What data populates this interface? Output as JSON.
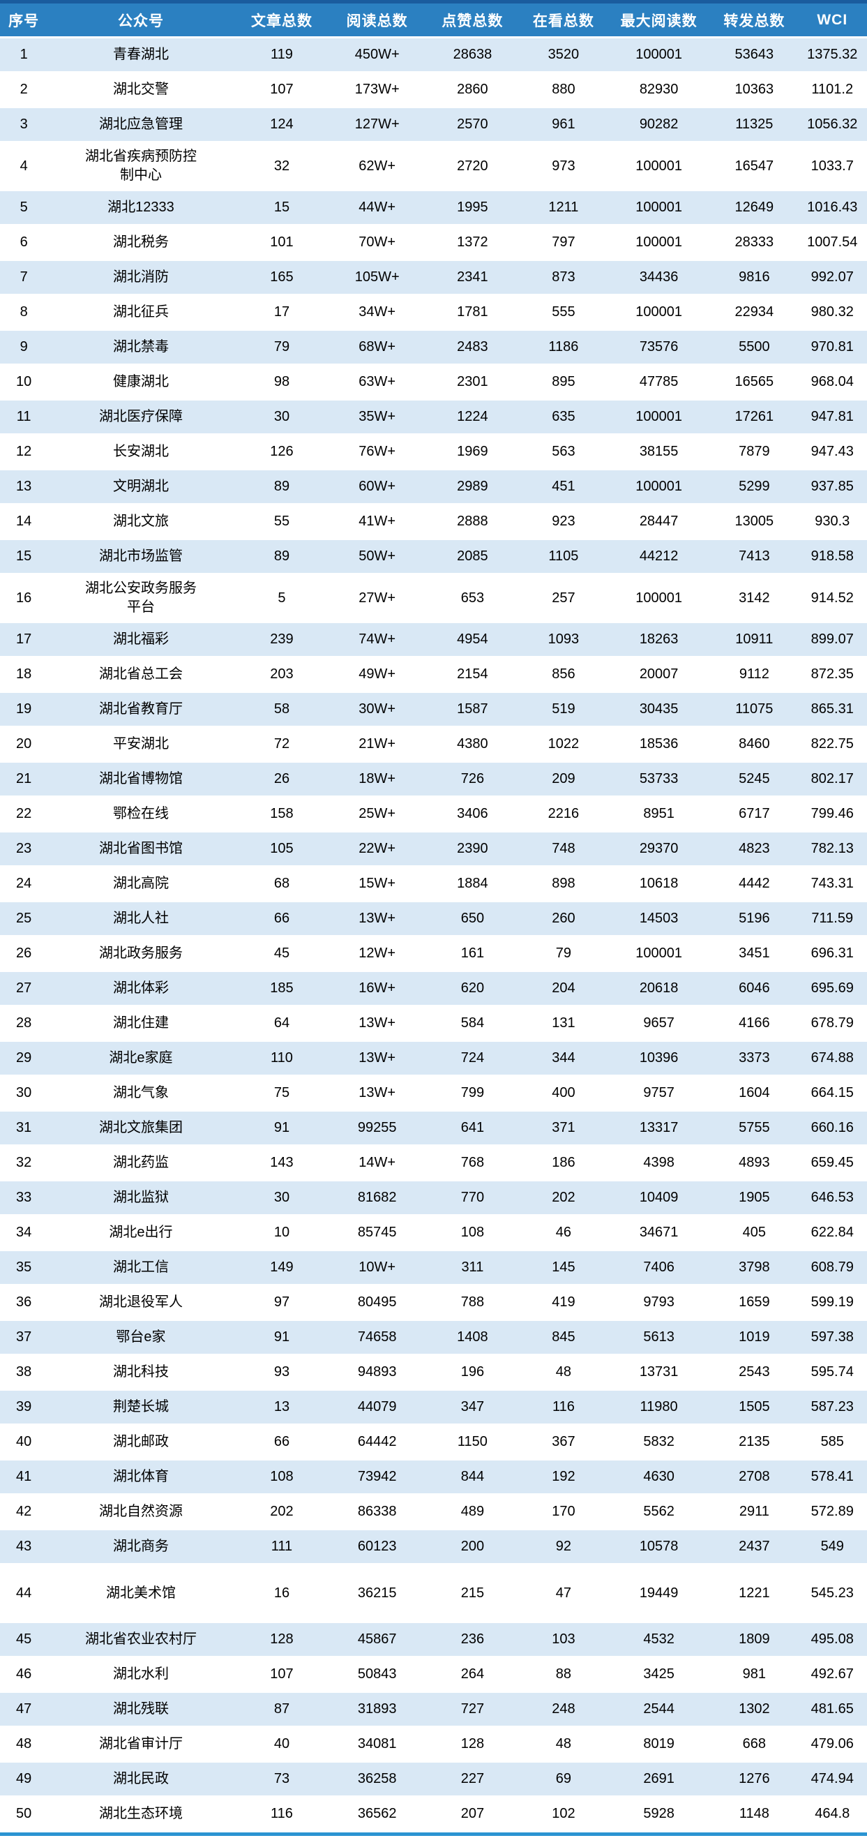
{
  "colors": {
    "top_bar": "#1A5C9E",
    "header_bg": "#2B80C1",
    "header_text": "#FFFFFF",
    "row_alt": "#D9E8F5",
    "row_plain": "#FFFFFF",
    "bottom_bar": "#2B94D2",
    "body_text": "#000000"
  },
  "chart_data": {
    "type": "table",
    "columns": [
      "序号",
      "公众号",
      "文章总数",
      "阅读总数",
      "点赞总数",
      "在看总数",
      "最大阅读数",
      "转发总数",
      "WCI"
    ],
    "rows": [
      [
        "1",
        "青春湖北",
        "119",
        "450W+",
        "28638",
        "3520",
        "100001",
        "53643",
        "1375.32"
      ],
      [
        "2",
        "湖北交警",
        "107",
        "173W+",
        "2860",
        "880",
        "82930",
        "10363",
        "1101.2"
      ],
      [
        "3",
        "湖北应急管理",
        "124",
        "127W+",
        "2570",
        "961",
        "90282",
        "11325",
        "1056.32"
      ],
      [
        "4",
        "湖北省疾病预防控制中心",
        "32",
        "62W+",
        "2720",
        "973",
        "100001",
        "16547",
        "1033.7"
      ],
      [
        "5",
        "湖北12333",
        "15",
        "44W+",
        "1995",
        "1211",
        "100001",
        "12649",
        "1016.43"
      ],
      [
        "6",
        "湖北税务",
        "101",
        "70W+",
        "1372",
        "797",
        "100001",
        "28333",
        "1007.54"
      ],
      [
        "7",
        "湖北消防",
        "165",
        "105W+",
        "2341",
        "873",
        "34436",
        "9816",
        "992.07"
      ],
      [
        "8",
        "湖北征兵",
        "17",
        "34W+",
        "1781",
        "555",
        "100001",
        "22934",
        "980.32"
      ],
      [
        "9",
        "湖北禁毒",
        "79",
        "68W+",
        "2483",
        "1186",
        "73576",
        "5500",
        "970.81"
      ],
      [
        "10",
        "健康湖北",
        "98",
        "63W+",
        "2301",
        "895",
        "47785",
        "16565",
        "968.04"
      ],
      [
        "11",
        "湖北医疗保障",
        "30",
        "35W+",
        "1224",
        "635",
        "100001",
        "17261",
        "947.81"
      ],
      [
        "12",
        "长安湖北",
        "126",
        "76W+",
        "1969",
        "563",
        "38155",
        "7879",
        "947.43"
      ],
      [
        "13",
        "文明湖北",
        "89",
        "60W+",
        "2989",
        "451",
        "100001",
        "5299",
        "937.85"
      ],
      [
        "14",
        "湖北文旅",
        "55",
        "41W+",
        "2888",
        "923",
        "28447",
        "13005",
        "930.3"
      ],
      [
        "15",
        "湖北市场监管",
        "89",
        "50W+",
        "2085",
        "1105",
        "44212",
        "7413",
        "918.58"
      ],
      [
        "16",
        "湖北公安政务服务平台",
        "5",
        "27W+",
        "653",
        "257",
        "100001",
        "3142",
        "914.52"
      ],
      [
        "17",
        "湖北福彩",
        "239",
        "74W+",
        "4954",
        "1093",
        "18263",
        "10911",
        "899.07"
      ],
      [
        "18",
        "湖北省总工会",
        "203",
        "49W+",
        "2154",
        "856",
        "20007",
        "9112",
        "872.35"
      ],
      [
        "19",
        "湖北省教育厅",
        "58",
        "30W+",
        "1587",
        "519",
        "30435",
        "11075",
        "865.31"
      ],
      [
        "20",
        "平安湖北",
        "72",
        "21W+",
        "4380",
        "1022",
        "18536",
        "8460",
        "822.75"
      ],
      [
        "21",
        "湖北省博物馆",
        "26",
        "18W+",
        "726",
        "209",
        "53733",
        "5245",
        "802.17"
      ],
      [
        "22",
        "鄂检在线",
        "158",
        "25W+",
        "3406",
        "2216",
        "8951",
        "6717",
        "799.46"
      ],
      [
        "23",
        "湖北省图书馆",
        "105",
        "22W+",
        "2390",
        "748",
        "29370",
        "4823",
        "782.13"
      ],
      [
        "24",
        "湖北高院",
        "68",
        "15W+",
        "1884",
        "898",
        "10618",
        "4442",
        "743.31"
      ],
      [
        "25",
        "湖北人社",
        "66",
        "13W+",
        "650",
        "260",
        "14503",
        "5196",
        "711.59"
      ],
      [
        "26",
        "湖北政务服务",
        "45",
        "12W+",
        "161",
        "79",
        "100001",
        "3451",
        "696.31"
      ],
      [
        "27",
        "湖北体彩",
        "185",
        "16W+",
        "620",
        "204",
        "20618",
        "6046",
        "695.69"
      ],
      [
        "28",
        "湖北住建",
        "64",
        "13W+",
        "584",
        "131",
        "9657",
        "4166",
        "678.79"
      ],
      [
        "29",
        "湖北e家庭",
        "110",
        "13W+",
        "724",
        "344",
        "10396",
        "3373",
        "674.88"
      ],
      [
        "30",
        "湖北气象",
        "75",
        "13W+",
        "799",
        "400",
        "9757",
        "1604",
        "664.15"
      ],
      [
        "31",
        "湖北文旅集团",
        "91",
        "99255",
        "641",
        "371",
        "13317",
        "5755",
        "660.16"
      ],
      [
        "32",
        "湖北药监",
        "143",
        "14W+",
        "768",
        "186",
        "4398",
        "4893",
        "659.45"
      ],
      [
        "33",
        "湖北监狱",
        "30",
        "81682",
        "770",
        "202",
        "10409",
        "1905",
        "646.53"
      ],
      [
        "34",
        "湖北e出行",
        "10",
        "85745",
        "108",
        "46",
        "34671",
        "405",
        "622.84"
      ],
      [
        "35",
        "湖北工信",
        "149",
        "10W+",
        "311",
        "145",
        "7406",
        "3798",
        "608.79"
      ],
      [
        "36",
        "湖北退役军人",
        "97",
        "80495",
        "788",
        "419",
        "9793",
        "1659",
        "599.19"
      ],
      [
        "37",
        "鄂台e家",
        "91",
        "74658",
        "1408",
        "845",
        "5613",
        "1019",
        "597.38"
      ],
      [
        "38",
        "湖北科技",
        "93",
        "94893",
        "196",
        "48",
        "13731",
        "2543",
        "595.74"
      ],
      [
        "39",
        "荆楚长城",
        "13",
        "44079",
        "347",
        "116",
        "11980",
        "1505",
        "587.23"
      ],
      [
        "40",
        "湖北邮政",
        "66",
        "64442",
        "1150",
        "367",
        "5832",
        "2135",
        "585"
      ],
      [
        "41",
        "湖北体育",
        "108",
        "73942",
        "844",
        "192",
        "4630",
        "2708",
        "578.41"
      ],
      [
        "42",
        "湖北自然资源",
        "202",
        "86338",
        "489",
        "170",
        "5562",
        "2911",
        "572.89"
      ],
      [
        "43",
        "湖北商务",
        "111",
        "60123",
        "200",
        "92",
        "10578",
        "2437",
        "549"
      ],
      [
        "44",
        "湖北美术馆",
        "16",
        "36215",
        "215",
        "47",
        "19449",
        "1221",
        "545.23"
      ],
      [
        "45",
        "湖北省农业农村厅",
        "128",
        "45867",
        "236",
        "103",
        "4532",
        "1809",
        "495.08"
      ],
      [
        "46",
        "湖北水利",
        "107",
        "50843",
        "264",
        "88",
        "3425",
        "981",
        "492.67"
      ],
      [
        "47",
        "湖北残联",
        "87",
        "31893",
        "727",
        "248",
        "2544",
        "1302",
        "481.65"
      ],
      [
        "48",
        "湖北省审计厅",
        "40",
        "34081",
        "128",
        "48",
        "8019",
        "668",
        "479.06"
      ],
      [
        "49",
        "湖北民政",
        "73",
        "36258",
        "227",
        "69",
        "2691",
        "1276",
        "474.94"
      ],
      [
        "50",
        "湖北生态环境",
        "116",
        "36562",
        "207",
        "102",
        "5928",
        "1148",
        "464.8"
      ]
    ]
  }
}
